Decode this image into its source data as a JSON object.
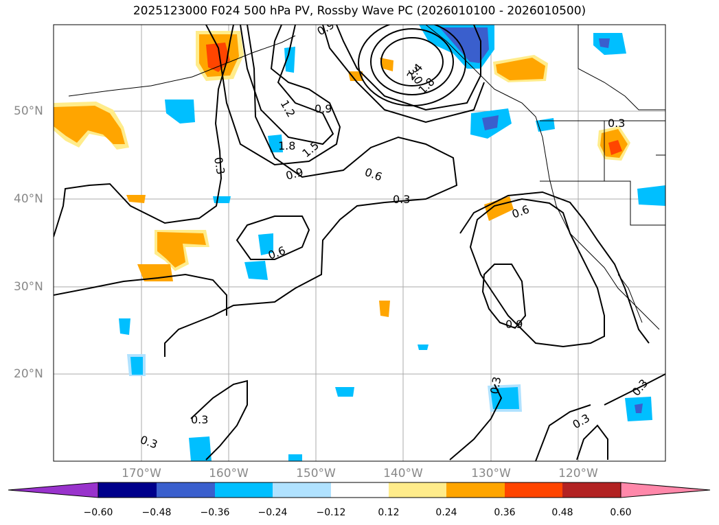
{
  "title": "2025123000 F024 500 hPa PV, Rossby Wave PC (2026010100 - 2026010500)",
  "lat_labels": [
    "50°N",
    "40°N",
    "30°N",
    "20°N"
  ],
  "lon_labels": [
    "170°W",
    "160°W",
    "150°W",
    "140°W",
    "130°W",
    "120°W"
  ],
  "contour_labels": [
    "0.9",
    "0.9",
    "1.2",
    "1.8",
    "1.5",
    "0.9",
    "0.3",
    "0.6",
    "0.3",
    "0.6",
    "0.6",
    "0.9",
    "0.3",
    "0.3",
    "0.3",
    "0.3",
    "0.3",
    "0.3",
    "1.8",
    "2.4",
    "3.0"
  ],
  "colorbar": {
    "ticks": [
      "−0.60",
      "−0.48",
      "−0.36",
      "−0.24",
      "−0.12",
      "0.12",
      "0.24",
      "0.36",
      "0.48",
      "0.60"
    ],
    "colors": {
      "lt_neg_060": "#9933cc",
      "neg_060_048": "#00008b",
      "neg_048_036": "#3a5fcd",
      "neg_036_024": "#00bfff",
      "neg_024_012": "#b0e2ff",
      "neg_012_012": "#ffffff",
      "pos_012_024": "#ffec8b",
      "pos_024_036": "#ffa500",
      "pos_036_048": "#ff4500",
      "pos_048_060": "#b22222",
      "gt_060": "#ff88aa"
    }
  }
}
